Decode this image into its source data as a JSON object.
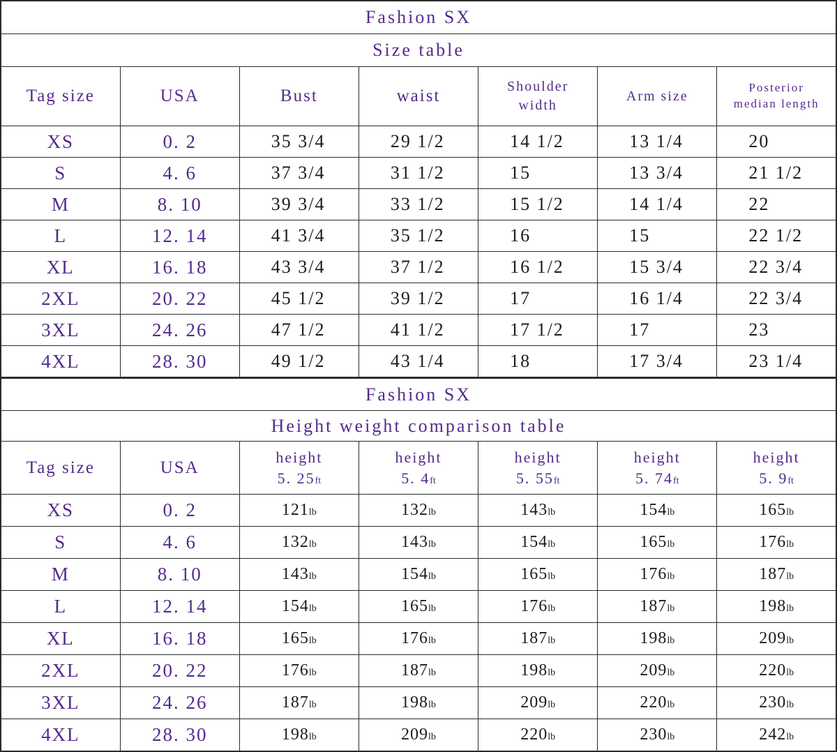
{
  "table1": {
    "title": "Fashion SX",
    "subtitle": "Size table",
    "headers": [
      "Tag size",
      "USA",
      "Bust",
      "waist",
      "Shoulder\nwidth",
      "Arm size",
      "Posterior\nmedian length"
    ],
    "rows": [
      [
        "XS",
        "0. 2",
        "35 3/4",
        "29 1/2",
        "14 1/2",
        "13 1/4",
        "20"
      ],
      [
        "S",
        "4. 6",
        "37 3/4",
        "31 1/2",
        "15",
        "13 3/4",
        "21 1/2"
      ],
      [
        "M",
        "8. 10",
        "39 3/4",
        "33 1/2",
        "15 1/2",
        "14 1/4",
        "22"
      ],
      [
        "L",
        "12. 14",
        "41 3/4",
        "35 1/2",
        "16",
        "15",
        "22 1/2"
      ],
      [
        "XL",
        "16. 18",
        "43 3/4",
        "37 1/2",
        "16 1/2",
        "15 3/4",
        "22 3/4"
      ],
      [
        "2XL",
        "20. 22",
        "45 1/2",
        "39 1/2",
        "17",
        "16 1/4",
        "22 3/4"
      ],
      [
        "3XL",
        "24. 26",
        "47 1/2",
        "41 1/2",
        "17 1/2",
        "17",
        "23"
      ],
      [
        "4XL",
        "28. 30",
        "49 1/2",
        "43 1/4",
        "18",
        "17 3/4",
        "23 1/4"
      ]
    ]
  },
  "table2": {
    "title": "Fashion SX",
    "subtitle": "Height weight comparison table",
    "headers": [
      "Tag size",
      "USA"
    ],
    "height_headers": [
      {
        "label": "height",
        "value": "5. 25",
        "unit": "ft"
      },
      {
        "label": "height",
        "value": "5. 4",
        "unit": "ft"
      },
      {
        "label": "height",
        "value": "5. 55",
        "unit": "ft"
      },
      {
        "label": "height",
        "value": "5. 74",
        "unit": "ft"
      },
      {
        "label": "height",
        "value": "5. 9",
        "unit": "ft"
      }
    ],
    "weight_unit": "lb",
    "rows": [
      {
        "tag": "XS",
        "usa": "0. 2",
        "weights": [
          "121",
          "132",
          "143",
          "154",
          "165"
        ]
      },
      {
        "tag": "S",
        "usa": "4. 6",
        "weights": [
          "132",
          "143",
          "154",
          "165",
          "176"
        ]
      },
      {
        "tag": "M",
        "usa": "8. 10",
        "weights": [
          "143",
          "154",
          "165",
          "176",
          "187"
        ]
      },
      {
        "tag": "L",
        "usa": "12. 14",
        "weights": [
          "154",
          "165",
          "176",
          "187",
          "198"
        ]
      },
      {
        "tag": "XL",
        "usa": "16. 18",
        "weights": [
          "165",
          "176",
          "187",
          "198",
          "209"
        ]
      },
      {
        "tag": "2XL",
        "usa": "20. 22",
        "weights": [
          "176",
          "187",
          "198",
          "209",
          "220"
        ]
      },
      {
        "tag": "3XL",
        "usa": "24. 26",
        "weights": [
          "187",
          "198",
          "209",
          "220",
          "230"
        ]
      },
      {
        "tag": "4XL",
        "usa": "28. 30",
        "weights": [
          "198",
          "209",
          "220",
          "230",
          "242"
        ]
      }
    ]
  },
  "colors": {
    "accent_purple": "#542b8c",
    "text_black": "#1c1c1c",
    "border": "#2b2b2b",
    "background": "#ffffff"
  }
}
